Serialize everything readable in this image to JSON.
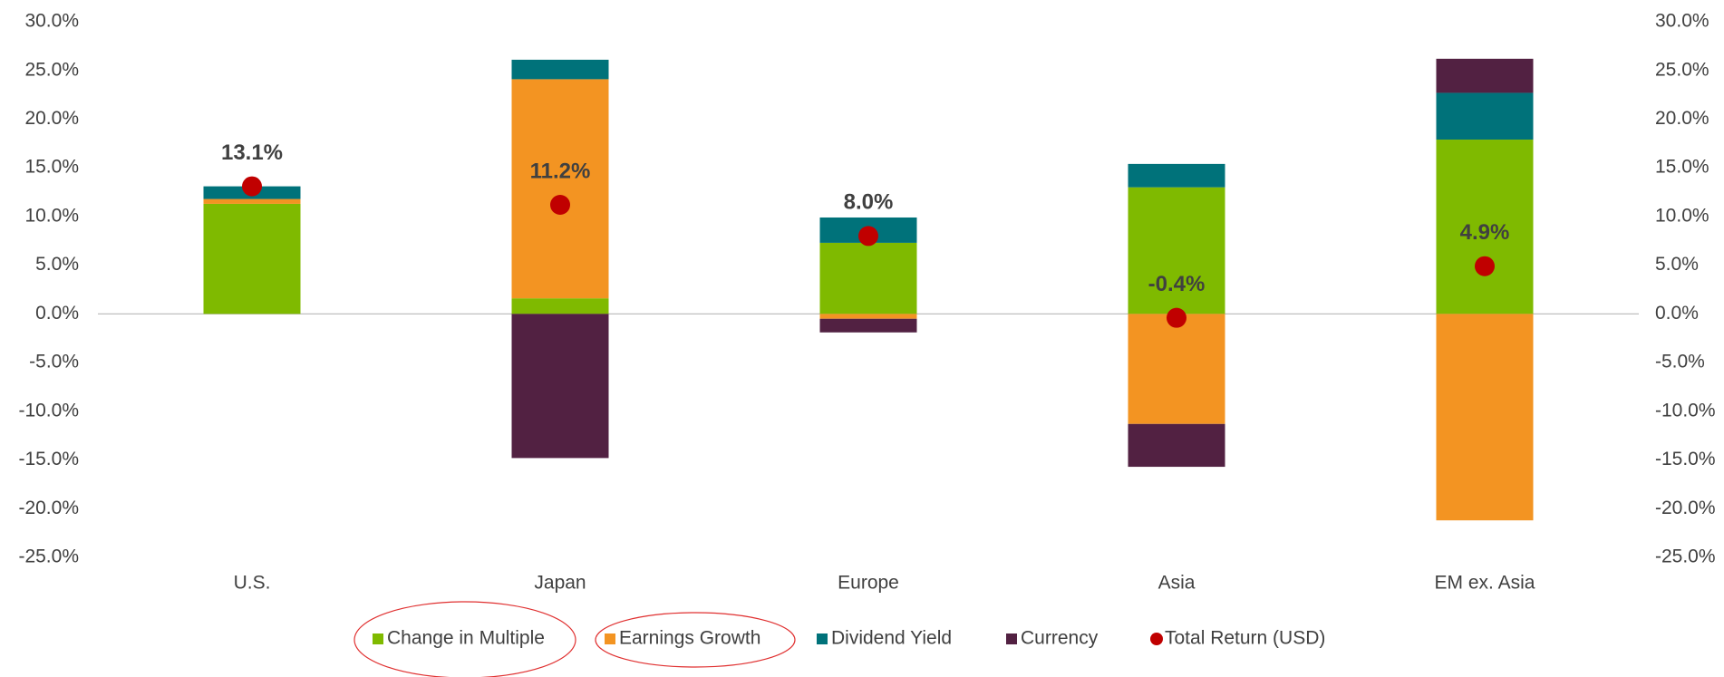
{
  "chart_data": {
    "type": "bar",
    "stacked": true,
    "categories": [
      "U.S.",
      "Japan",
      "Europe",
      "Asia",
      "EM ex. Asia"
    ],
    "series": [
      {
        "name": "Change in Multiple",
        "color": "#7fba00",
        "values": [
          11.3,
          1.6,
          7.3,
          13.0,
          17.9
        ]
      },
      {
        "name": "Earnings Growth",
        "color": "#f39422",
        "values": [
          0.5,
          22.5,
          -0.5,
          -11.3,
          -21.2
        ]
      },
      {
        "name": "Dividend Yield",
        "color": "#00727a",
        "values": [
          1.3,
          2.0,
          2.6,
          2.4,
          4.8
        ]
      },
      {
        "name": "Currency",
        "color": "#522142",
        "values": [
          0,
          -14.8,
          -1.4,
          -4.4,
          3.5
        ]
      },
      {
        "name": "Total Return (USD)",
        "color": "#c00000",
        "type": "scatter",
        "values": [
          13.1,
          11.2,
          8.0,
          -0.4,
          4.9
        ],
        "value_labels": [
          "13.1%",
          "11.2%",
          "8.0%",
          "-0.4%",
          "4.9%"
        ]
      }
    ],
    "ylim": [
      -25,
      30
    ],
    "yticks": [
      {
        "value": -25,
        "label": "-25.0%"
      },
      {
        "value": -20,
        "label": "-20.0%"
      },
      {
        "value": -15,
        "label": "-15.0%"
      },
      {
        "value": -10,
        "label": "-10.0%"
      },
      {
        "value": -5,
        "label": "-5.0%"
      },
      {
        "value": 0,
        "label": "0.0%"
      },
      {
        "value": 5,
        "label": "5.0%"
      },
      {
        "value": 10,
        "label": "10.0%"
      },
      {
        "value": 15,
        "label": "15.0%"
      },
      {
        "value": 20,
        "label": "20.0%"
      },
      {
        "value": 25,
        "label": "25.0%"
      },
      {
        "value": 30,
        "label": "30.0%"
      }
    ],
    "y2lim": [
      -25,
      30
    ],
    "y2ticks": [
      {
        "value": -25,
        "label": "-25.0%"
      },
      {
        "value": -20,
        "label": "-20.0%"
      },
      {
        "value": -15,
        "label": "-15.0%"
      },
      {
        "value": -10,
        "label": "-10.0%"
      },
      {
        "value": -5,
        "label": "-5.0%"
      },
      {
        "value": 0,
        "label": "0.0%"
      },
      {
        "value": 5,
        "label": "5.0%"
      },
      {
        "value": 10,
        "label": "10.0%"
      },
      {
        "value": 15,
        "label": "15.0%"
      },
      {
        "value": 20,
        "label": "20.0%"
      },
      {
        "value": 25,
        "label": "25.0%"
      },
      {
        "value": 30,
        "label": "30.0%"
      }
    ],
    "legend": "bottom"
  }
}
